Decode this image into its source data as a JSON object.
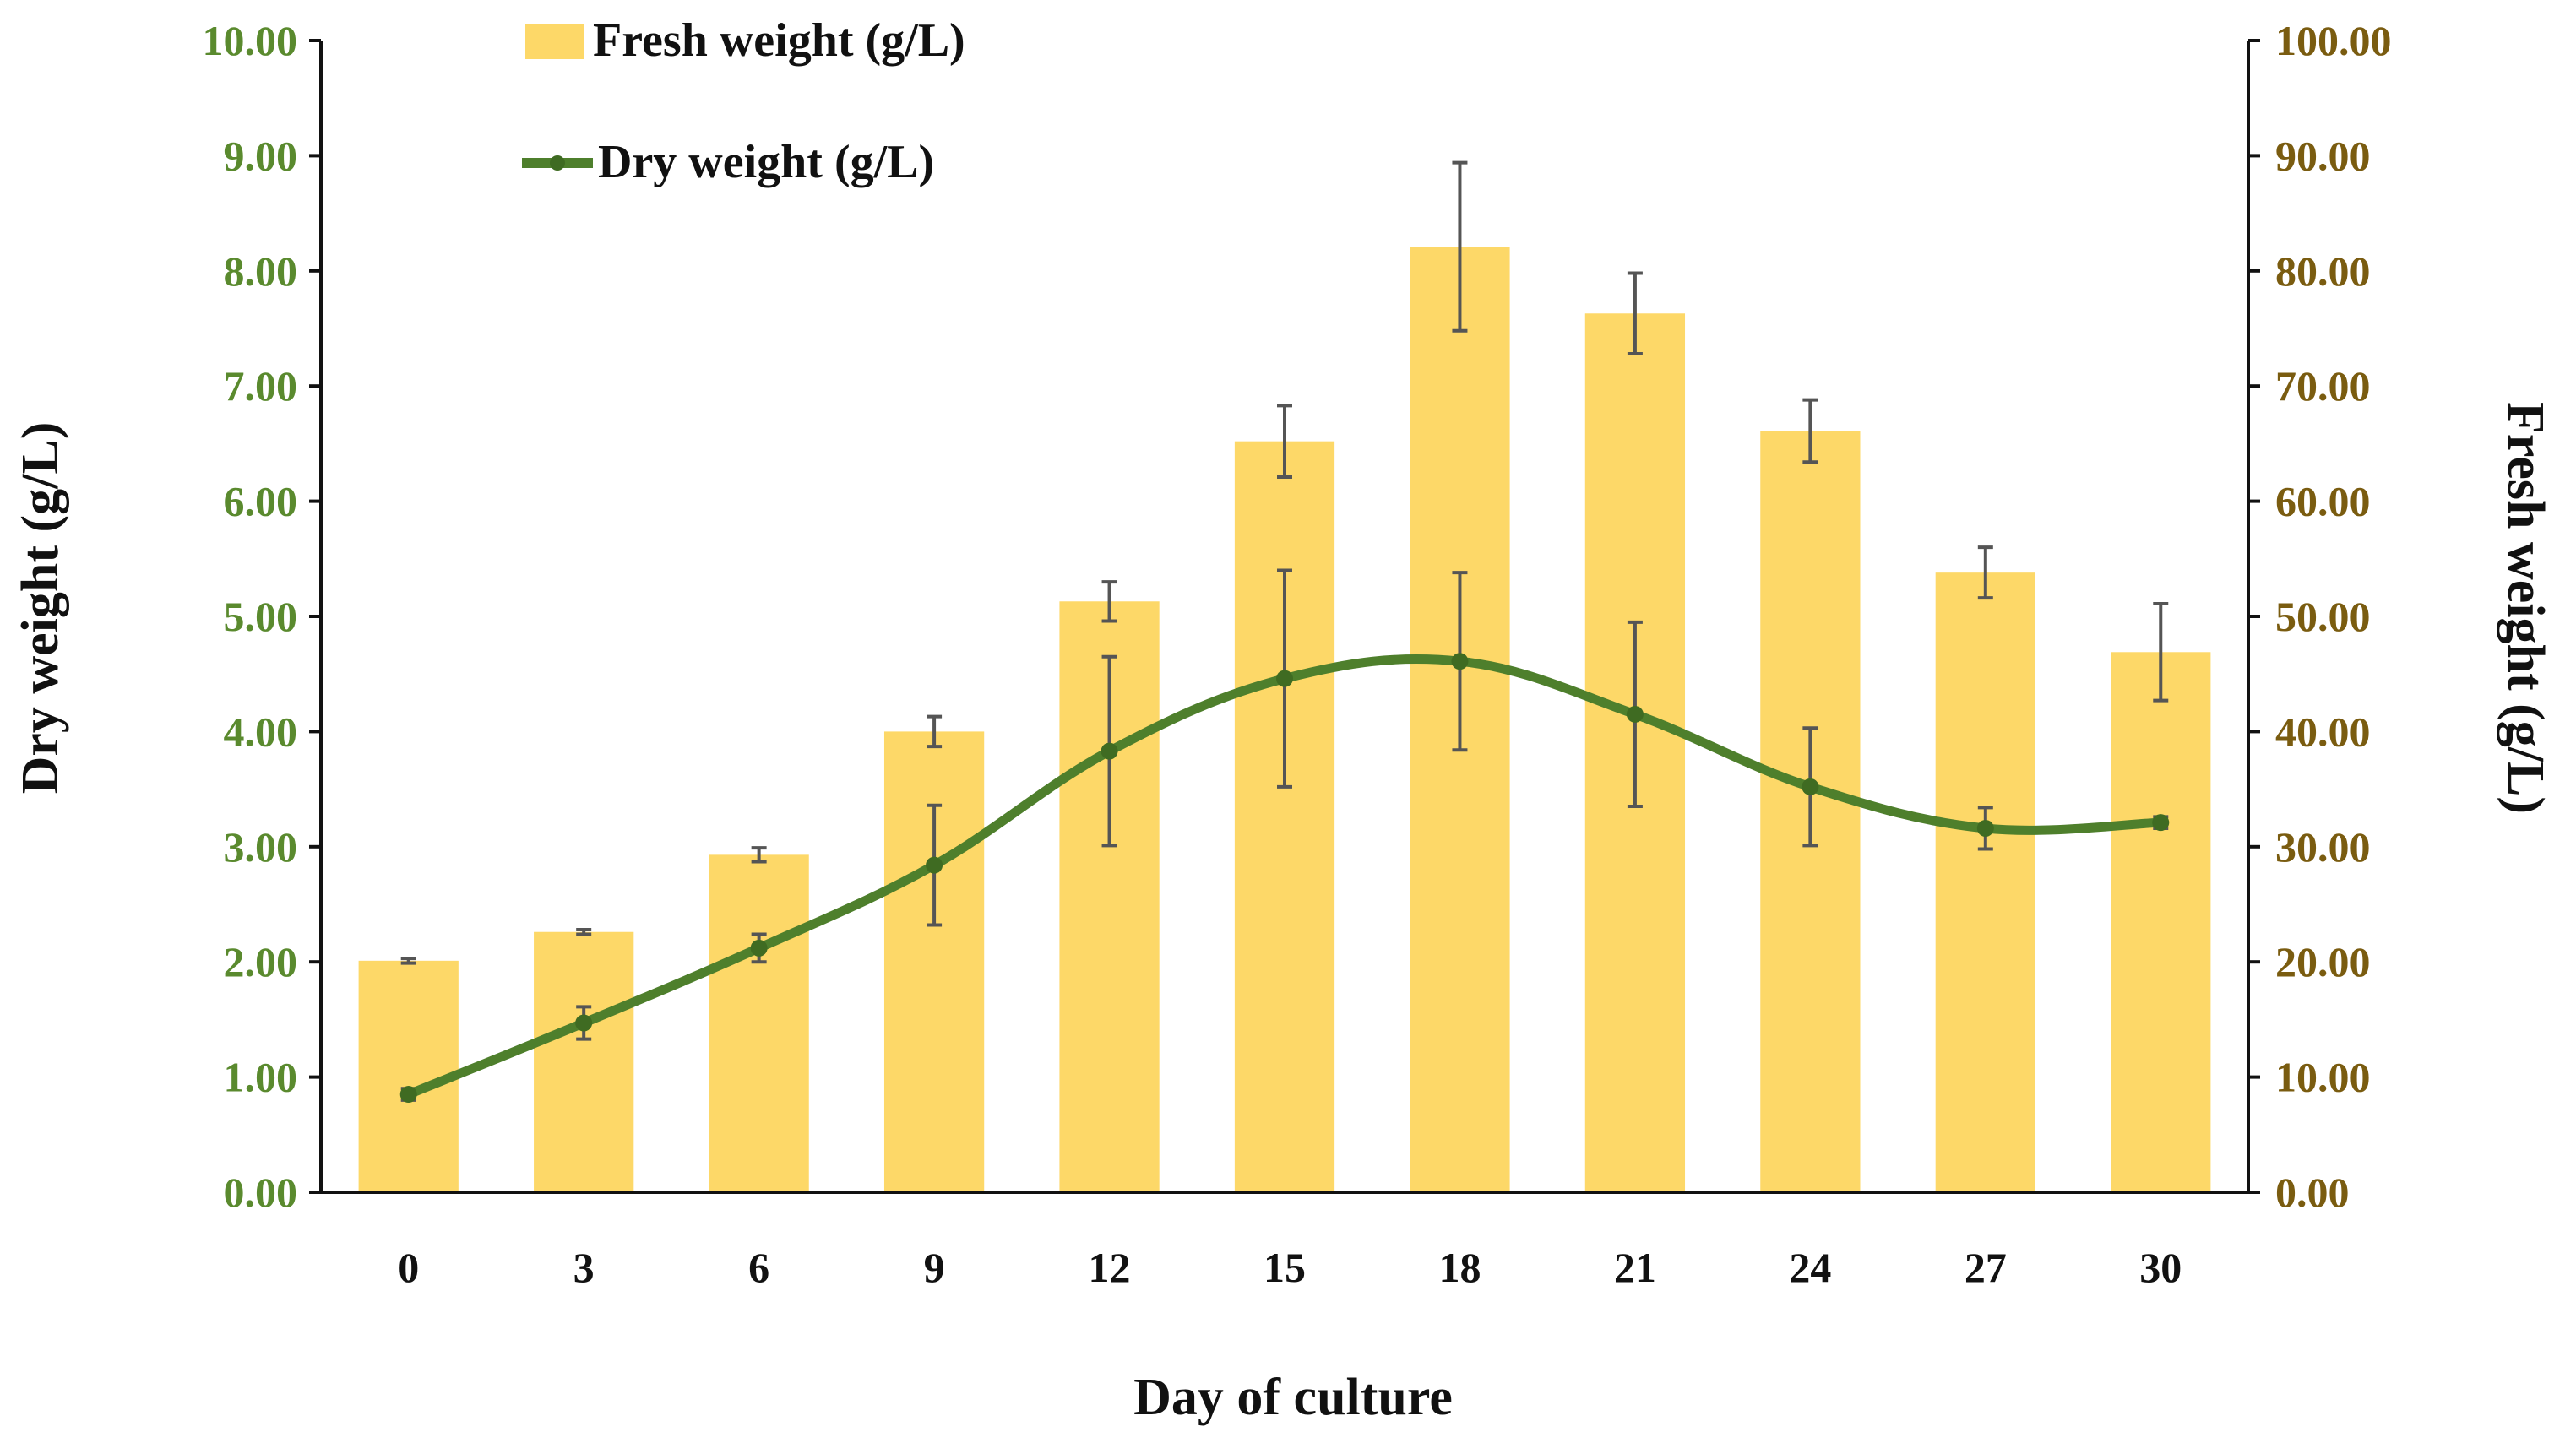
{
  "chart_data": {
    "type": "bar",
    "title": "",
    "xlabel": "Day of culture",
    "ylabel_left": "Dry weight (g/L)",
    "ylabel_right": "Fresh weight (g/L)",
    "categories": [
      "0",
      "3",
      "6",
      "9",
      "12",
      "15",
      "18",
      "21",
      "24",
      "27",
      "30"
    ],
    "ylim_left": [
      0,
      10
    ],
    "ylim_right": [
      0,
      100
    ],
    "yticks_left": [
      "0.00",
      "1.00",
      "2.00",
      "3.00",
      "4.00",
      "5.00",
      "6.00",
      "7.00",
      "8.00",
      "9.00",
      "10.00"
    ],
    "yticks_right": [
      "0.00",
      "10.00",
      "20.00",
      "30.00",
      "40.00",
      "50.00",
      "60.00",
      "70.00",
      "80.00",
      "90.00",
      "100.00"
    ],
    "grid": false,
    "legend_position": "top-left",
    "series": [
      {
        "name": "Fresh weight (g/L)",
        "kind": "bar",
        "axis": "right",
        "color": "#fdd868",
        "values": [
          20.1,
          22.6,
          29.3,
          40.0,
          51.3,
          65.2,
          82.1,
          76.3,
          66.1,
          53.8,
          46.9
        ],
        "errors": [
          0.2,
          0.2,
          0.6,
          1.3,
          1.7,
          3.1,
          7.3,
          3.5,
          2.7,
          2.2,
          4.2
        ]
      },
      {
        "name": "Dry weight (g/L)",
        "kind": "line",
        "axis": "left",
        "color": "#4e7f2c",
        "values": [
          0.85,
          1.47,
          2.12,
          2.84,
          3.83,
          4.46,
          4.61,
          4.15,
          3.52,
          3.16,
          3.21
        ],
        "errors": [
          0.05,
          0.14,
          0.12,
          0.52,
          0.82,
          0.94,
          0.77,
          0.8,
          0.51,
          0.18,
          0.05
        ]
      }
    ],
    "colors": {
      "left_tick": "#5a8a2e",
      "right_tick": "#7a5c10",
      "axis": "#111111",
      "error_bar": "#555555"
    }
  }
}
